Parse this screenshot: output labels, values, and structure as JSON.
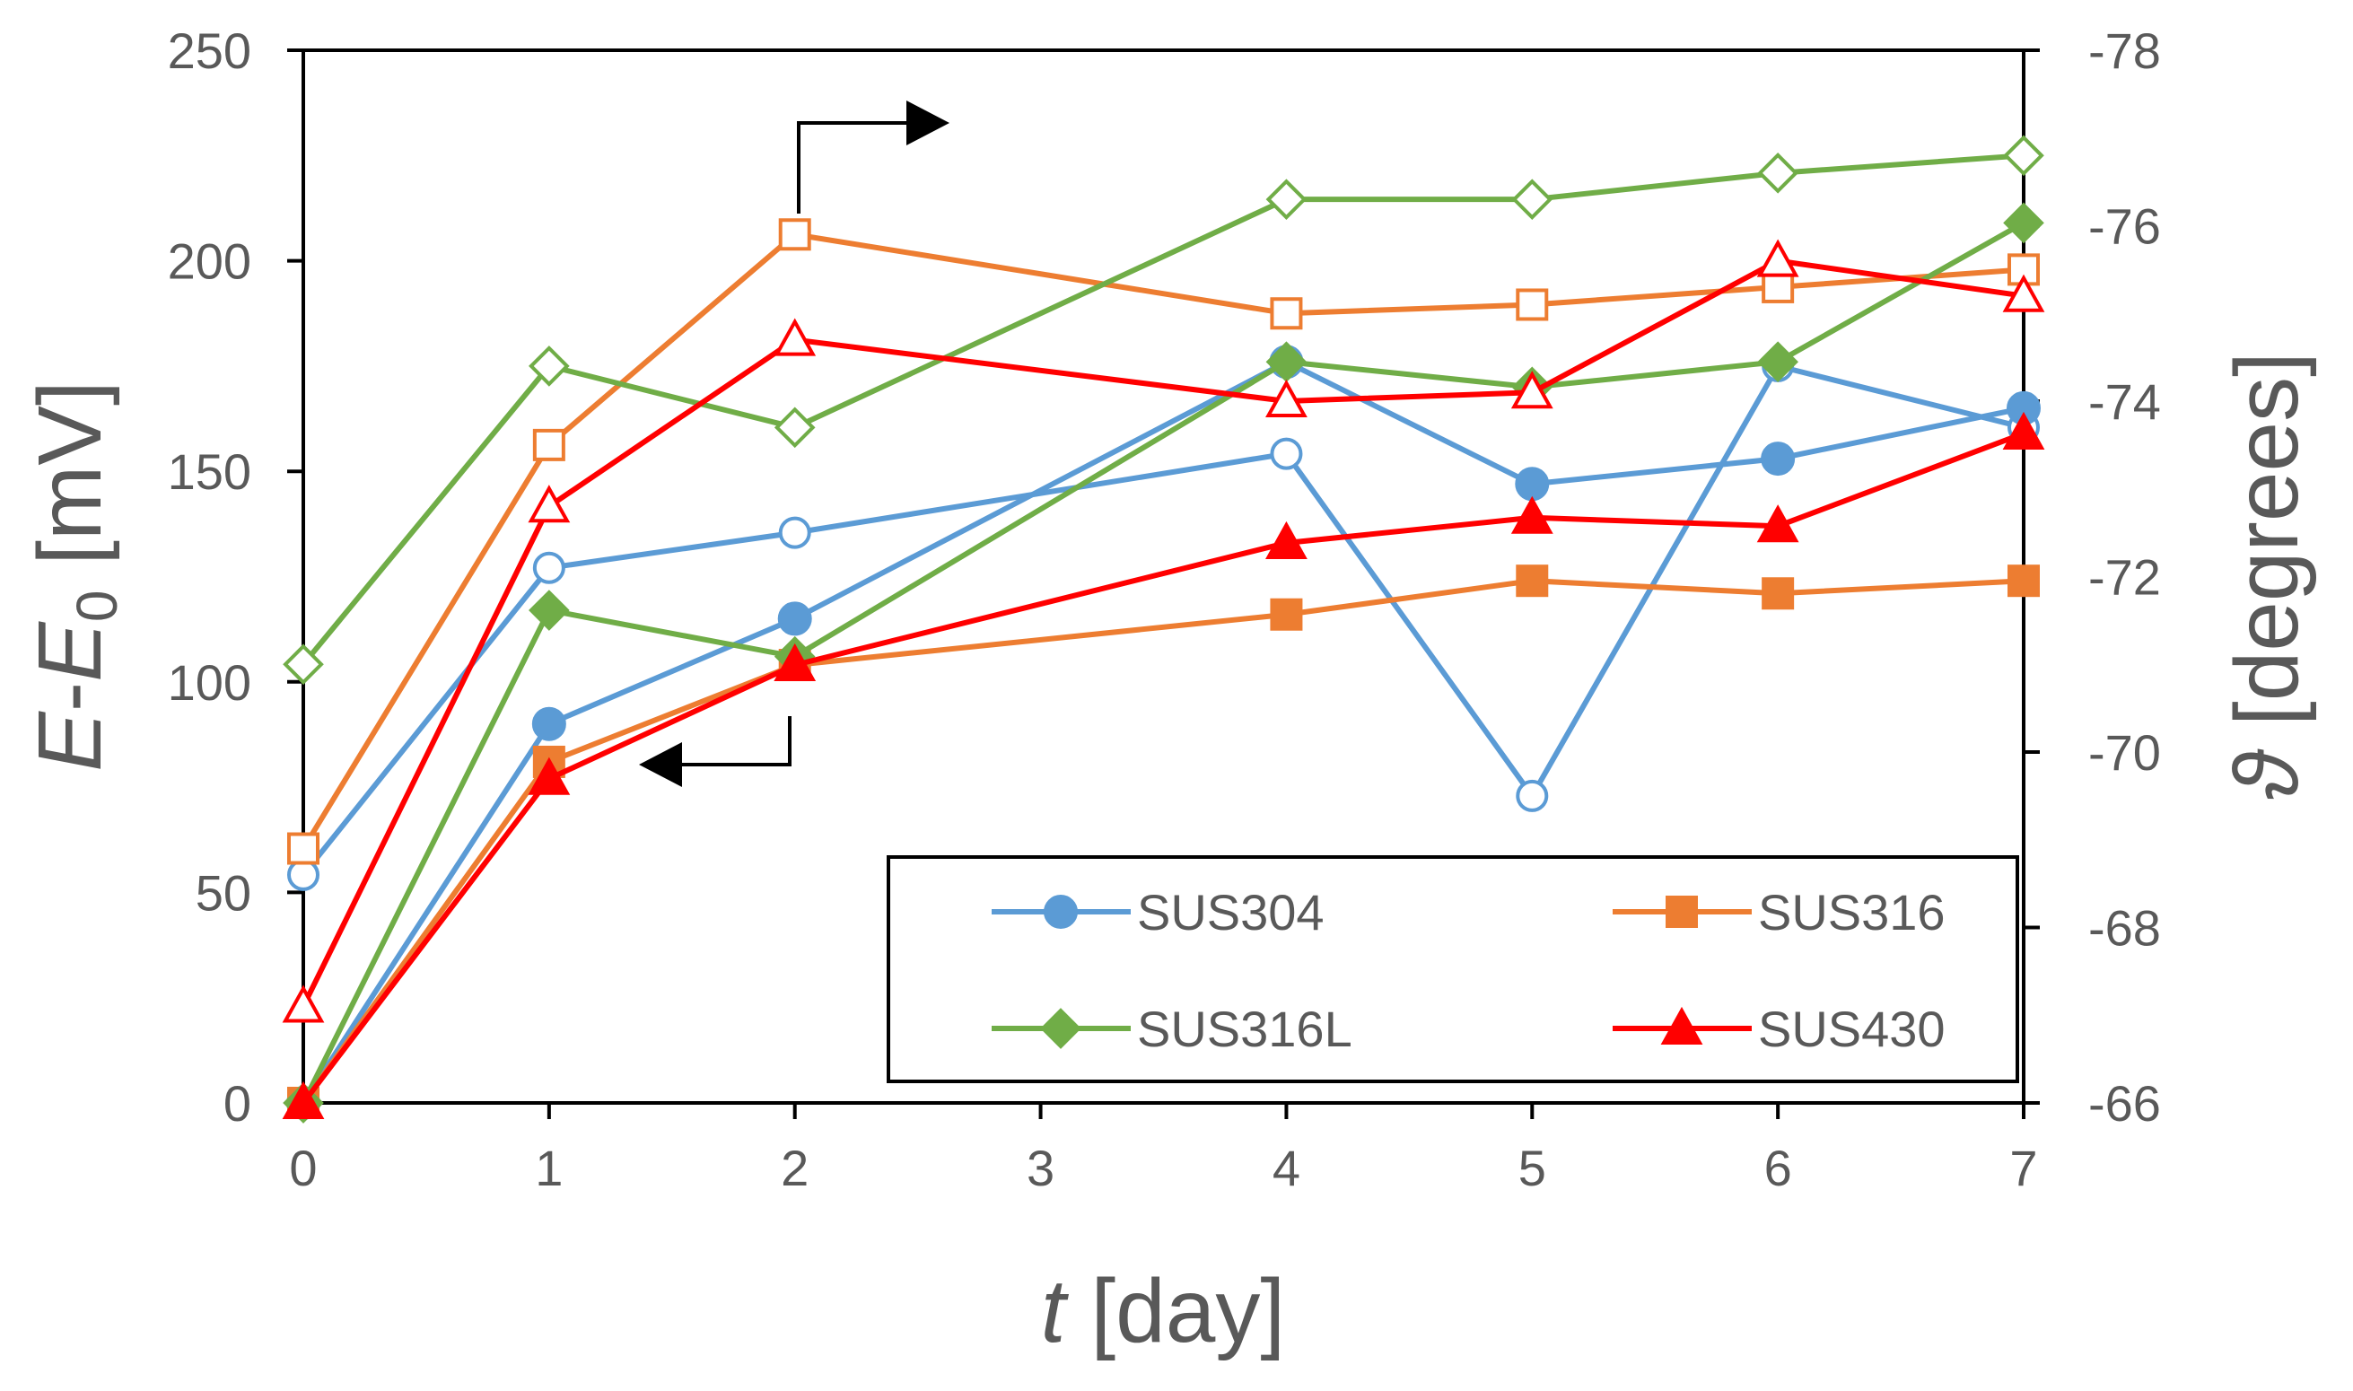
{
  "chart_data": {
    "type": "line",
    "x": [
      0,
      1,
      2,
      4,
      5,
      6,
      7
    ],
    "x_tick_labels": [
      "0",
      "1",
      "2",
      "3",
      "4",
      "5",
      "6",
      "7"
    ],
    "xlabel_italic": "t",
    "xlabel_rest": " [day]",
    "ylabel_italic_1": "E",
    "ylabel_mid": "-",
    "ylabel_italic_2": "E",
    "ylabel_sub": "0",
    "ylabel_rest": " [mV]",
    "y2label_symbol": "ϑ",
    "y2label_rest": " [degrees]",
    "ylim": [
      0,
      250
    ],
    "y_ticks": [
      0,
      50,
      100,
      150,
      200,
      250
    ],
    "y2lim": [
      -66,
      -78
    ],
    "y2_ticks": [
      -66,
      -68,
      -70,
      -72,
      -74,
      -76,
      -78
    ],
    "series": [
      {
        "name": "SUS304",
        "color": "#5B9BD5",
        "marker": "circle",
        "potential_mV": [
          0,
          90,
          115,
          176,
          147,
          153,
          165
        ],
        "phase_deg": [
          -68.6,
          -72.1,
          -72.5,
          -73.4,
          -69.5,
          -74.4,
          -73.7
        ]
      },
      {
        "name": "SUS316",
        "color": "#ED7D31",
        "marker": "square",
        "potential_mV": [
          0,
          81,
          104,
          116,
          124,
          121,
          124
        ],
        "phase_deg": [
          -68.9,
          -73.5,
          -75.9,
          -75.0,
          -75.1,
          -75.3,
          -75.5
        ]
      },
      {
        "name": "SUS316L",
        "color": "#70AD47",
        "marker": "diamond",
        "potential_mV": [
          0,
          117,
          106,
          176,
          170,
          176,
          209
        ],
        "phase_deg": [
          -71.0,
          -74.4,
          -73.7,
          -76.3,
          -76.3,
          -76.6,
          -76.8
        ]
      },
      {
        "name": "SUS430",
        "color": "#FF0000",
        "marker": "triangle",
        "potential_mV": [
          0,
          77,
          104,
          133,
          139,
          137,
          159
        ],
        "phase_deg": [
          -67.1,
          -72.8,
          -74.7,
          -74.0,
          -74.1,
          -75.6,
          -75.2
        ]
      }
    ],
    "legend_position": "bottom-right",
    "annotations": [
      "arrow to right axis at t=2 (open markers)",
      "arrow to left axis at t=2 (filled markers)"
    ]
  }
}
